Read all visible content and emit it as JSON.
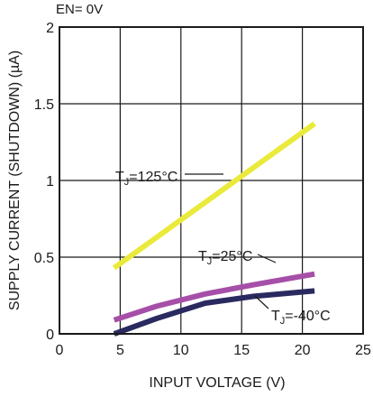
{
  "chart_data": {
    "type": "line",
    "title": "EN= 0V",
    "xlabel": "INPUT VOLTAGE (V)",
    "ylabel": "SUPPLY CURRENT (SHUTDOWN) (µA)",
    "xlim": [
      0,
      25
    ],
    "ylim": [
      0,
      2
    ],
    "x_ticks": [
      0,
      5,
      10,
      15,
      20,
      25
    ],
    "y_ticks": [
      0,
      0.5,
      1,
      1.5,
      2
    ],
    "x_tick_labels": [
      "0",
      "5",
      "10",
      "15",
      "20",
      "25"
    ],
    "y_tick_labels": [
      "0",
      "0.5",
      "1",
      "1.5",
      "2"
    ],
    "grid": true,
    "series": [
      {
        "name": "TJ=125°C",
        "label_main": "T",
        "label_sub": "J",
        "label_rest": "=125°C",
        "color": "#eaea3c",
        "x": [
          4.5,
          21
        ],
        "y": [
          0.43,
          1.37
        ]
      },
      {
        "name": "TJ=25°C",
        "label_main": "T",
        "label_sub": "J",
        "label_rest": "=25°C",
        "color": "#a54fa8",
        "x": [
          4.5,
          8,
          12,
          16,
          21
        ],
        "y": [
          0.09,
          0.18,
          0.26,
          0.32,
          0.39
        ]
      },
      {
        "name": "TJ=-40°C",
        "label_main": "T",
        "label_sub": "J",
        "label_rest": "=-40°C",
        "color": "#2a2a60",
        "x": [
          4.5,
          8,
          12,
          16,
          21
        ],
        "y": [
          0.0,
          0.1,
          0.2,
          0.245,
          0.28
        ]
      }
    ]
  }
}
